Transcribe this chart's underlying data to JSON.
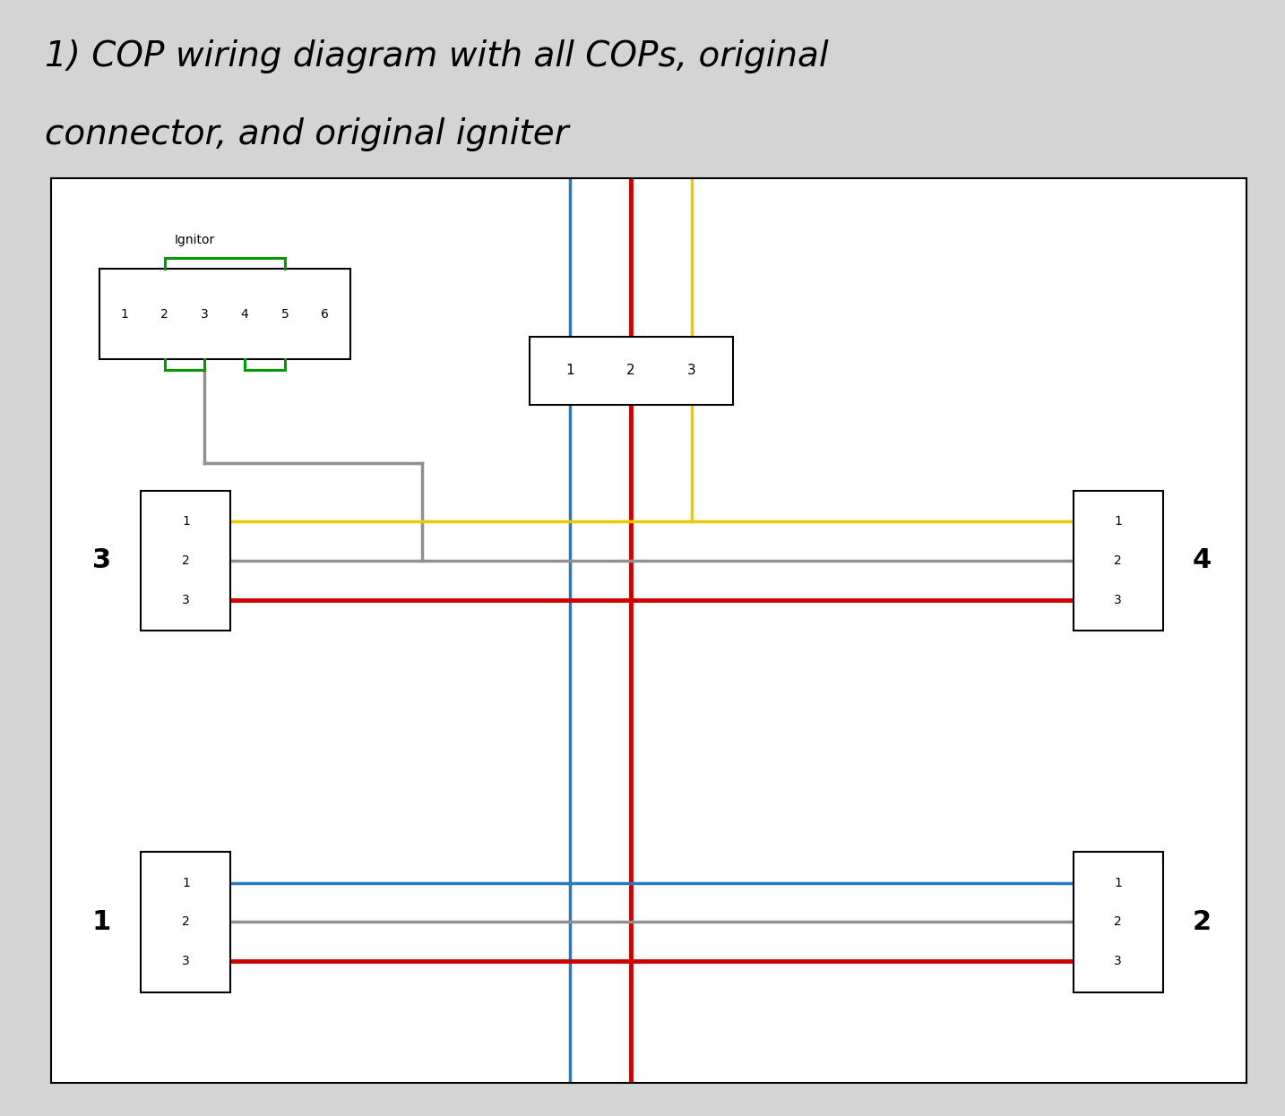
{
  "title_line1": "1) COP wiring diagram with all COPs, original",
  "title_line2": "connector, and original igniter",
  "bg_color": "#d4d4d4",
  "diagram_bg": "#ffffff",
  "title_color": "#000000",
  "title_fontsize": 28,
  "wire_lw": 2.5,
  "colors": {
    "blue": "#2979c0",
    "red": "#cc0000",
    "yellow": "#f0c800",
    "gray": "#909090",
    "green": "#009900",
    "black": "#000000"
  }
}
